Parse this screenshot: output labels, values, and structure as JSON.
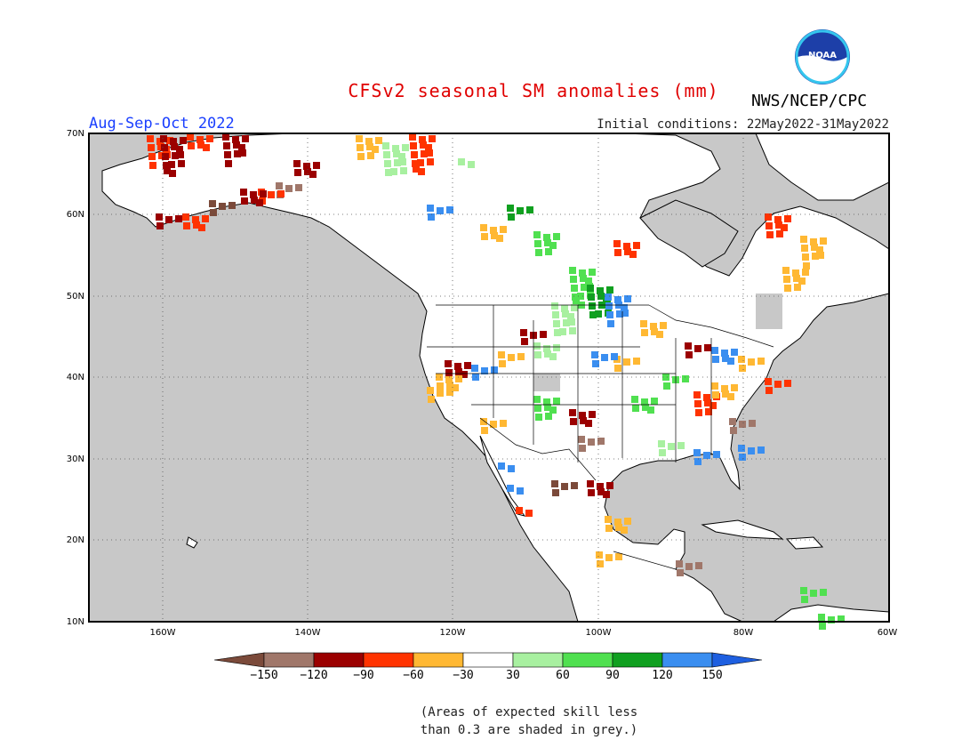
{
  "title": "CFSv2 seasonal SM anomalies (mm)",
  "agency": "NWS/NCEP/CPC",
  "logo": {
    "text": "NOAA"
  },
  "period": "Aug-Sep-Oct 2022",
  "initial_conditions": "Initial conditions: 22May2022-31May2022",
  "lat_labels": [
    "70N",
    "60N",
    "50N",
    "40N",
    "30N",
    "20N",
    "10N"
  ],
  "lon_labels": [
    "160W",
    "140W",
    "120W",
    "100W",
    "80W",
    "60W"
  ],
  "colorbar": {
    "labels": [
      "-150",
      "-120",
      "-90",
      "-60",
      "-30",
      "30",
      "60",
      "90",
      "120",
      "150"
    ],
    "colors": [
      "#7b4a3a",
      "#a0776a",
      "#9b0000",
      "#ff3300",
      "#ffb833",
      "#ffffff",
      "#a8f0a0",
      "#50e050",
      "#10a020",
      "#3a8ef0",
      "#1e5fe0"
    ]
  },
  "colors": {
    "ocean_skill_grey": "#c8c8c8",
    "land": "#ffffff",
    "title": "#e00000",
    "period": "#1a3fff"
  },
  "footnote": [
    "(Areas of expected skill less",
    "than 0.3 are shaded in grey.)"
  ]
}
